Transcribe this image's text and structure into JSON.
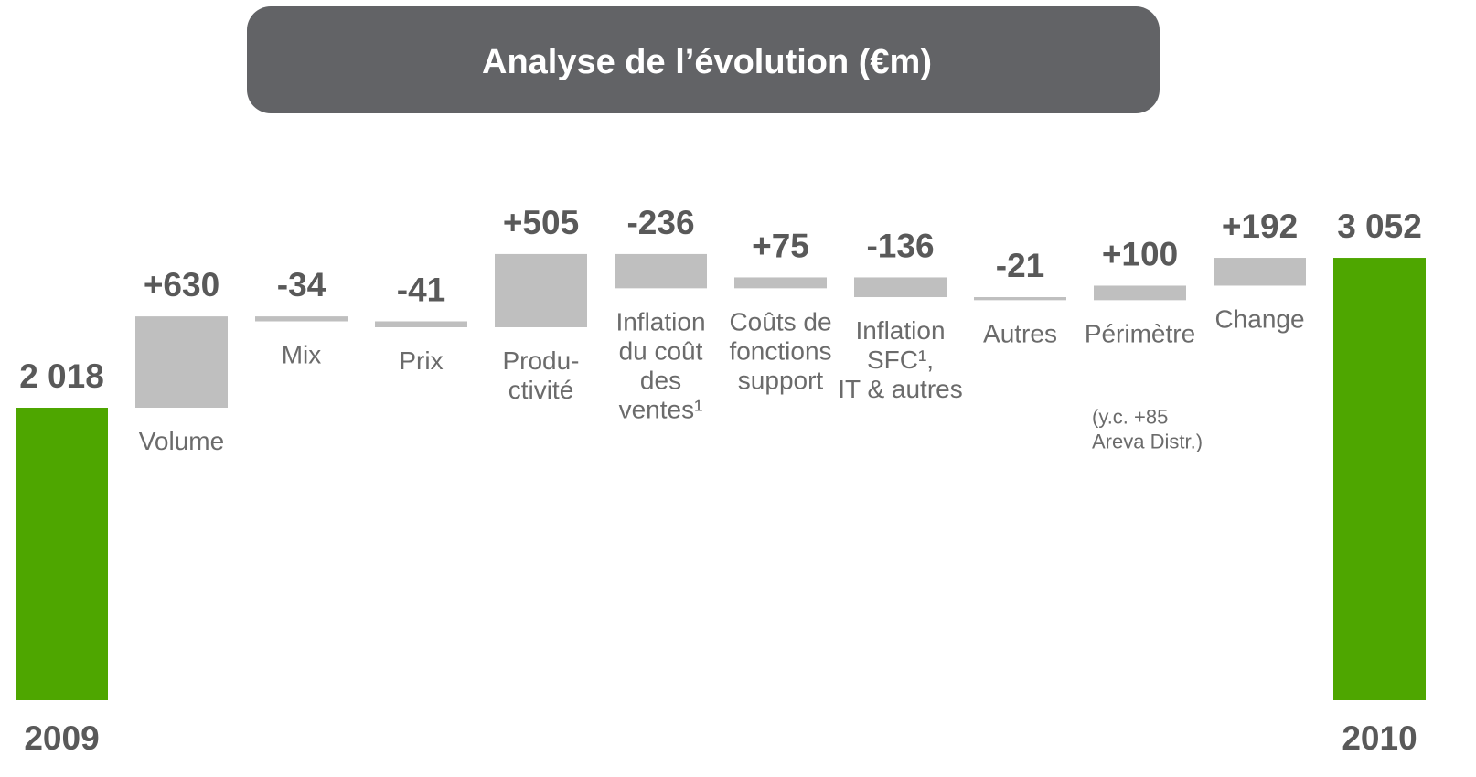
{
  "chart_data": {
    "type": "waterfall",
    "title": "Analyse de l’évolution (€m)",
    "categories": [
      "2009",
      "Volume",
      "Mix",
      "Prix",
      "Produ-\nctivité",
      "Inflation\ndu coût\ndes\nventes¹",
      "Coûts de\nfonctions\nsupport",
      "Inflation\nSFC¹,\nIT & autres",
      "Autres",
      "Périmètre",
      "Change",
      "2010"
    ],
    "measure": [
      "total",
      "relative",
      "relative",
      "relative",
      "relative",
      "relative",
      "relative",
      "relative",
      "relative",
      "relative",
      "relative",
      "total"
    ],
    "values": [
      2018,
      630,
      -34,
      -41,
      505,
      -236,
      75,
      -136,
      -21,
      100,
      192,
      3052
    ],
    "value_labels": [
      "2 018",
      "+630",
      "-34",
      "-41",
      "+505",
      "-236",
      "+75",
      "-136",
      "-21",
      "+100",
      "+192",
      "3 052"
    ],
    "annotation": "(y.c. +85\nAreva Distr.)",
    "colors": {
      "total": "#4ea600",
      "relative": "#bfbfbf"
    },
    "ylim": [
      0,
      3500
    ]
  }
}
